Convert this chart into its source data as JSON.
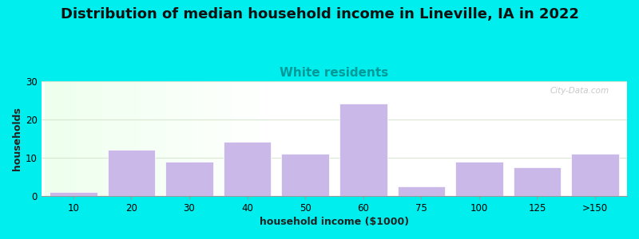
{
  "title": "Distribution of median household income in Lineville, IA in 2022",
  "subtitle": "White residents",
  "xlabel": "household income ($1000)",
  "ylabel": "households",
  "background_color": "#00EEEE",
  "bar_color": "#C9B8E8",
  "bar_edge_color": "#FFFFFF",
  "categories": [
    "10",
    "20",
    "30",
    "40",
    "50",
    "60",
    "75",
    "100",
    "125",
    ">150"
  ],
  "values": [
    1,
    12,
    9,
    14,
    11,
    24,
    2.5,
    9,
    7.5,
    11
  ],
  "ylim": [
    0,
    30
  ],
  "yticks": [
    0,
    10,
    20,
    30
  ],
  "grid_color": "#D8E8D0",
  "title_fontsize": 13,
  "subtitle_fontsize": 11,
  "subtitle_color": "#009999",
  "axis_label_fontsize": 9,
  "tick_fontsize": 8.5,
  "watermark": "City-Data.com"
}
